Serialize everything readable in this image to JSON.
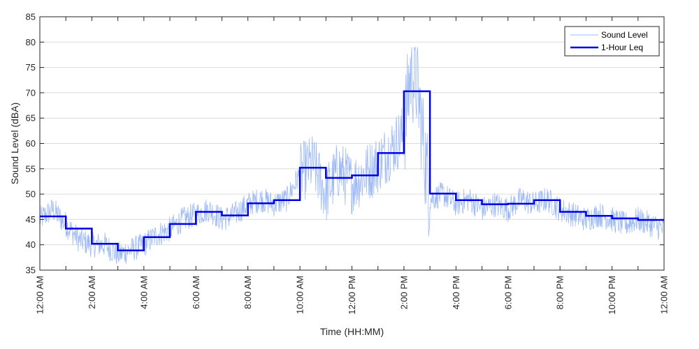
{
  "chart_data": {
    "type": "line",
    "xlabel": "Time (HH:MM)",
    "ylabel": "Sound Level (dBA)",
    "ylim": [
      35,
      85
    ],
    "xlim_hours": [
      0,
      24
    ],
    "y_ticks": [
      35,
      40,
      45,
      50,
      55,
      60,
      65,
      70,
      75,
      80,
      85
    ],
    "x_tick_labels": [
      "12:00 AM",
      "2:00 AM",
      "4:00 AM",
      "6:00 AM",
      "8:00 AM",
      "10:00 AM",
      "12:00 PM",
      "2:00 PM",
      "4:00 PM",
      "6:00 PM",
      "8:00 PM",
      "10:00 PM",
      "12:00 AM"
    ],
    "grid": "horizontal",
    "legend_position": "top-right",
    "series": [
      {
        "name": "Sound Level",
        "color": "#9db9f5",
        "style": "thin",
        "x": [
          0,
          0.5,
          1,
          1.5,
          2,
          2.5,
          3,
          3.5,
          4,
          4.5,
          5,
          5.5,
          6,
          6.5,
          7,
          7.5,
          8,
          8.5,
          9,
          9.5,
          10,
          10.5,
          11,
          11.5,
          12,
          12.5,
          13,
          13.5,
          14,
          14.25,
          14.5,
          14.75,
          15,
          15.5,
          16,
          16.5,
          17,
          17.5,
          18,
          18.5,
          19,
          19.5,
          20,
          20.5,
          21,
          21.5,
          22,
          22.5,
          23,
          23.5,
          24
        ],
        "values": [
          45,
          47,
          44,
          41,
          40,
          40,
          38,
          39,
          40,
          42,
          43,
          45,
          46,
          47,
          45,
          46,
          48,
          49,
          48,
          49,
          54,
          56,
          50,
          55,
          52,
          54,
          56,
          59,
          62,
          74,
          72,
          60,
          49,
          50,
          48,
          49,
          47,
          48,
          47,
          49,
          48,
          49,
          47,
          46,
          45,
          46,
          45,
          44,
          45,
          44,
          43
        ]
      },
      {
        "name": "1-Hour Leq",
        "color": "#0000e6",
        "style": "step",
        "step_values": [
          45.6,
          43.2,
          40.2,
          38.9,
          41.5,
          44.1,
          46.5,
          45.8,
          48.2,
          48.8,
          55.2,
          53.2,
          53.7,
          58.1,
          70.3,
          50.1,
          48.8,
          48.0,
          48.1,
          48.8,
          46.5,
          45.7,
          45.2,
          44.9
        ]
      }
    ]
  }
}
